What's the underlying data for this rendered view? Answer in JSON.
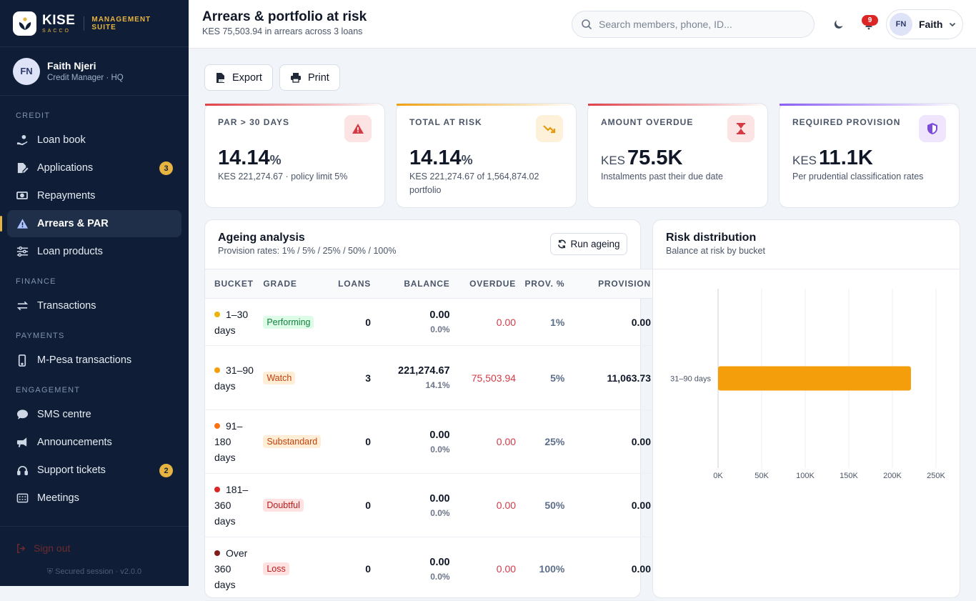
{
  "brand": {
    "name": "KISE",
    "sub": "SACCO",
    "suite": "MANAGEMENT SUITE"
  },
  "user": {
    "initials": "FN",
    "name": "Faith Njeri",
    "role": "Credit Manager · HQ"
  },
  "nav": {
    "sections": [
      {
        "title": "CREDIT",
        "items": [
          {
            "label": "Loan book",
            "icon": "hand-coin-icon"
          },
          {
            "label": "Applications",
            "icon": "file-signature-icon",
            "badge": "3"
          },
          {
            "label": "Repayments",
            "icon": "money-bill-icon"
          },
          {
            "label": "Arrears & PAR",
            "icon": "warning-icon",
            "active": true
          },
          {
            "label": "Loan products",
            "icon": "sliders-icon"
          }
        ]
      },
      {
        "title": "FINANCE",
        "items": [
          {
            "label": "Transactions",
            "icon": "exchange-icon"
          }
        ]
      },
      {
        "title": "PAYMENTS",
        "items": [
          {
            "label": "M-Pesa transactions",
            "icon": "mobile-icon"
          }
        ]
      },
      {
        "title": "ENGAGEMENT",
        "items": [
          {
            "label": "SMS centre",
            "icon": "chat-icon"
          },
          {
            "label": "Announcements",
            "icon": "megaphone-icon"
          },
          {
            "label": "Support tickets",
            "icon": "headset-icon",
            "badge": "2"
          },
          {
            "label": "Meetings",
            "icon": "calendar-icon"
          }
        ]
      }
    ],
    "signout": "Sign out",
    "session": "Secured session · v2.0.0"
  },
  "header": {
    "title": "Arrears & portfolio at risk",
    "subtitle": "KES 75,503.94 in arrears across 3 loans",
    "search_placeholder": "Search members, phone, ID...",
    "notifications": "9",
    "profile_initials": "FN",
    "profile_name": "Faith"
  },
  "toolbar": {
    "export": "Export",
    "print": "Print"
  },
  "kpis": [
    {
      "label": "PAR > 30 DAYS",
      "value": "14.14",
      "unit": "%",
      "prefix": "",
      "note": "KES 221,274.67 · policy limit 5%",
      "icon": "alert-triangle-icon",
      "accent": "#e0424a"
    },
    {
      "label": "TOTAL AT RISK",
      "value": "14.14",
      "unit": "%",
      "prefix": "",
      "note": "KES 221,274.67 of 1,564,874.02 portfolio",
      "icon": "trending-down-icon",
      "accent": "#f0a114"
    },
    {
      "label": "AMOUNT OVERDUE",
      "value": "75.5K",
      "unit": "",
      "prefix": "KES",
      "note": "Instalments past their due date",
      "icon": "hourglass-icon",
      "accent": "#e0424a"
    },
    {
      "label": "REQUIRED PROVISION",
      "value": "11.1K",
      "unit": "",
      "prefix": "KES",
      "note": "Per prudential classification rates",
      "icon": "shield-icon",
      "accent": "#8b5cf6"
    }
  ],
  "ageing": {
    "title": "Ageing analysis",
    "subtitle": "Provision rates: 1% / 5% / 25% / 50% / 100%",
    "run_label": "Run ageing",
    "columns": [
      "BUCKET",
      "GRADE",
      "LOANS",
      "BALANCE",
      "OVERDUE",
      "PROV. %",
      "PROVISION"
    ],
    "rows": [
      {
        "bucket": "1–30 days",
        "dot": "#eab308",
        "grade": "Performing",
        "grade_bg": "#dcfce7",
        "grade_fg": "#15803d",
        "loans": "0",
        "balance": "0.00",
        "balance_pct": "0.0%",
        "overdue": "0.00",
        "prov_pct": "1%",
        "provision": "0.00"
      },
      {
        "bucket": "31–90 days",
        "dot": "#f59e0b",
        "grade": "Watch",
        "grade_bg": "#ffedd5",
        "grade_fg": "#c2410c",
        "loans": "3",
        "balance": "221,274.67",
        "balance_pct": "14.1%",
        "overdue": "75,503.94",
        "prov_pct": "5%",
        "provision": "11,063.73"
      },
      {
        "bucket": "91–180 days",
        "dot": "#f97316",
        "grade": "Substandard",
        "grade_bg": "#ffedd5",
        "grade_fg": "#c2410c",
        "loans": "0",
        "balance": "0.00",
        "balance_pct": "0.0%",
        "overdue": "0.00",
        "prov_pct": "25%",
        "provision": "0.00"
      },
      {
        "bucket": "181–360 days",
        "dot": "#dc2626",
        "grade": "Doubtful",
        "grade_bg": "#fee2e2",
        "grade_fg": "#b91c1c",
        "loans": "0",
        "balance": "0.00",
        "balance_pct": "0.0%",
        "overdue": "0.00",
        "prov_pct": "50%",
        "provision": "0.00"
      },
      {
        "bucket": "Over 360 days",
        "dot": "#7f1d1d",
        "grade": "Loss",
        "grade_bg": "#fee2e2",
        "grade_fg": "#b91c1c",
        "loans": "0",
        "balance": "0.00",
        "balance_pct": "0.0%",
        "overdue": "0.00",
        "prov_pct": "100%",
        "provision": "0.00"
      }
    ]
  },
  "risk": {
    "title": "Risk distribution",
    "subtitle": "Balance at risk by bucket"
  },
  "chart_data": {
    "type": "bar",
    "orientation": "horizontal",
    "categories": [
      "31–90 days"
    ],
    "values": [
      221274.67
    ],
    "xlim": [
      0,
      250000
    ],
    "ticks": [
      0,
      50000,
      100000,
      150000,
      200000,
      250000
    ],
    "tick_labels": [
      "0K",
      "50K",
      "100K",
      "150K",
      "200K",
      "250K"
    ],
    "bar_color": "#f59e0b",
    "grid": true
  }
}
